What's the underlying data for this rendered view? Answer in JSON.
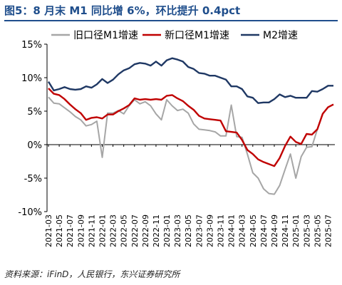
{
  "title": "图5：8 月末 M1 同比增 6%，环比提升 0.4pct",
  "source": "资料来源：iFinD，人民银行，东兴证券研究所",
  "chart_data": {
    "type": "line",
    "title": "图5：8 月末 M1 同比增 6%，环比提升 0.4pct",
    "xlabel": "",
    "ylabel": "",
    "ylim": [
      -10,
      15
    ],
    "yticks": [
      -10,
      -5,
      0,
      5,
      10,
      15
    ],
    "ytick_labels": [
      "-10%",
      "-5%",
      "0%",
      "5%",
      "10%",
      "15%"
    ],
    "x_tick_labels": [
      "2021-03",
      "2021-05",
      "2021-07",
      "2021-09",
      "2021-11",
      "2022-01",
      "2022-03",
      "2022-05",
      "2022-07",
      "2022-09",
      "2022-11",
      "2023-01",
      "2023-03",
      "2023-05",
      "2023-07",
      "2023-09",
      "2023-11",
      "2024-01",
      "2024-03",
      "2024-05",
      "2024-07",
      "2024-09",
      "2024-11",
      "2025-01",
      "2025-03",
      "2025-05",
      "2025-07"
    ],
    "grid": false,
    "legend_position": "top",
    "x": [
      "2021-03",
      "2021-04",
      "2021-05",
      "2021-06",
      "2021-07",
      "2021-08",
      "2021-09",
      "2021-10",
      "2021-11",
      "2021-12",
      "2022-01",
      "2022-02",
      "2022-03",
      "2022-04",
      "2022-05",
      "2022-06",
      "2022-07",
      "2022-08",
      "2022-09",
      "2022-10",
      "2022-11",
      "2022-12",
      "2023-01",
      "2023-02",
      "2023-03",
      "2023-04",
      "2023-05",
      "2023-06",
      "2023-07",
      "2023-08",
      "2023-09",
      "2023-10",
      "2023-11",
      "2023-12",
      "2024-01",
      "2024-02",
      "2024-03",
      "2024-04",
      "2024-05",
      "2024-06",
      "2024-07",
      "2024-08",
      "2024-09",
      "2024-10",
      "2024-11",
      "2024-12",
      "2025-01",
      "2025-02",
      "2025-03",
      "2025-04",
      "2025-05",
      "2025-06",
      "2025-07",
      "2025-08"
    ],
    "series": [
      {
        "name": "旧口径M1增速",
        "color": "#a6a6a6",
        "values": [
          7.1,
          6.2,
          6.1,
          5.5,
          4.9,
          4.2,
          3.7,
          2.8,
          3.0,
          3.5,
          -1.9,
          4.7,
          4.7,
          5.1,
          4.6,
          5.8,
          6.7,
          6.1,
          6.4,
          5.8,
          4.6,
          3.7,
          6.7,
          5.8,
          5.1,
          5.3,
          4.7,
          3.1,
          2.3,
          2.2,
          2.1,
          1.9,
          1.3,
          1.3,
          5.9,
          1.2,
          1.1,
          -1.4,
          -4.2,
          -5.0,
          -6.6,
          -7.3,
          -7.4,
          -6.1,
          -3.7,
          -1.4,
          -5.0,
          -1.8,
          -0.4,
          -0.3,
          2.3,
          4.6,
          5.6,
          6.0
        ]
      },
      {
        "name": "新口径M1增速",
        "color": "#c00000",
        "values": [
          8.4,
          7.6,
          7.4,
          6.8,
          6.0,
          5.3,
          4.7,
          3.7,
          4.0,
          4.1,
          3.9,
          4.5,
          4.5,
          5.0,
          5.4,
          5.9,
          6.9,
          6.7,
          6.8,
          6.7,
          6.8,
          6.7,
          7.3,
          7.4,
          6.9,
          6.5,
          5.8,
          5.2,
          4.3,
          3.9,
          3.8,
          3.7,
          3.6,
          2.0,
          1.9,
          1.8,
          0.7,
          -0.8,
          -1.4,
          -2.2,
          -2.6,
          -2.9,
          -3.2,
          -2.0,
          -0.2,
          1.2,
          0.4,
          0.1,
          1.6,
          1.5,
          2.3,
          4.6,
          5.6,
          6.0
        ]
      },
      {
        "name": "M2增速",
        "color": "#1f3864",
        "values": [
          9.4,
          8.1,
          8.3,
          8.6,
          8.3,
          8.2,
          8.3,
          8.7,
          8.5,
          9.0,
          9.8,
          9.2,
          9.7,
          10.5,
          11.1,
          11.4,
          12.0,
          12.2,
          12.1,
          11.8,
          12.4,
          11.8,
          12.6,
          12.9,
          12.7,
          12.4,
          11.6,
          11.3,
          10.7,
          10.6,
          10.3,
          10.3,
          10.0,
          9.7,
          8.7,
          8.7,
          8.3,
          7.2,
          7.0,
          6.2,
          6.3,
          6.3,
          6.8,
          7.5,
          7.1,
          7.3,
          7.0,
          7.0,
          7.0,
          8.0,
          7.9,
          8.3,
          8.8,
          8.8
        ]
      }
    ]
  }
}
